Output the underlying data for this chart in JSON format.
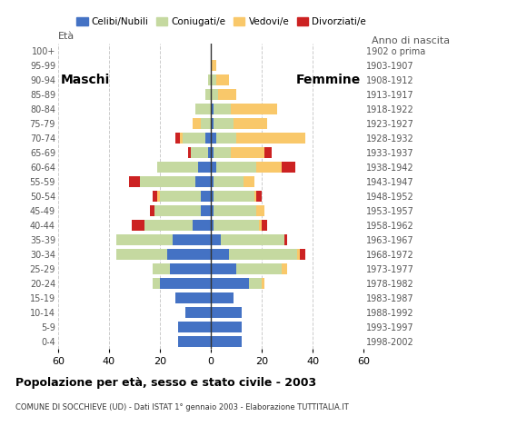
{
  "age_groups": [
    "0-4",
    "5-9",
    "10-14",
    "15-19",
    "20-24",
    "25-29",
    "30-34",
    "35-39",
    "40-44",
    "45-49",
    "50-54",
    "55-59",
    "60-64",
    "65-69",
    "70-74",
    "75-79",
    "80-84",
    "85-89",
    "90-94",
    "95-99",
    "100+"
  ],
  "birth_years": [
    "1998-2002",
    "1993-1997",
    "1988-1992",
    "1983-1987",
    "1978-1982",
    "1973-1977",
    "1968-1972",
    "1963-1967",
    "1958-1962",
    "1953-1957",
    "1948-1952",
    "1943-1947",
    "1938-1942",
    "1933-1937",
    "1928-1932",
    "1923-1927",
    "1918-1922",
    "1913-1917",
    "1908-1912",
    "1903-1907",
    "1902 o prima"
  ],
  "male": {
    "celibi": [
      13,
      13,
      10,
      14,
      20,
      16,
      17,
      15,
      7,
      4,
      4,
      6,
      5,
      1,
      2,
      0,
      0,
      0,
      0,
      0,
      0
    ],
    "coniugati": [
      0,
      0,
      0,
      0,
      3,
      7,
      20,
      22,
      19,
      18,
      16,
      22,
      16,
      7,
      9,
      4,
      6,
      2,
      1,
      0,
      0
    ],
    "vedovi": [
      0,
      0,
      0,
      0,
      0,
      0,
      0,
      0,
      0,
      0,
      1,
      0,
      0,
      0,
      1,
      3,
      0,
      0,
      0,
      0,
      0
    ],
    "divorziati": [
      0,
      0,
      0,
      0,
      0,
      0,
      0,
      0,
      5,
      2,
      2,
      4,
      0,
      1,
      2,
      0,
      0,
      0,
      0,
      0,
      0
    ]
  },
  "female": {
    "nubili": [
      12,
      12,
      12,
      9,
      15,
      10,
      7,
      4,
      1,
      1,
      1,
      1,
      2,
      1,
      2,
      1,
      1,
      0,
      0,
      0,
      0
    ],
    "coniugate": [
      0,
      0,
      0,
      0,
      5,
      18,
      27,
      25,
      18,
      17,
      16,
      12,
      16,
      7,
      8,
      8,
      7,
      3,
      2,
      0,
      0
    ],
    "vedove": [
      0,
      0,
      0,
      0,
      1,
      2,
      1,
      0,
      1,
      3,
      1,
      4,
      10,
      13,
      27,
      13,
      18,
      7,
      5,
      2,
      0
    ],
    "divorziate": [
      0,
      0,
      0,
      0,
      0,
      0,
      2,
      1,
      2,
      0,
      2,
      0,
      5,
      3,
      0,
      0,
      0,
      0,
      0,
      0,
      0
    ]
  },
  "colors": {
    "celibi": "#4472C4",
    "coniugati": "#C5D9A0",
    "vedovi": "#F9C86A",
    "divorziati": "#CC2222"
  },
  "xlim": 60,
  "title": "Popolazione per età, sesso e stato civile - 2003",
  "subtitle": "COMUNE DI SOCCHIEVE (UD) - Dati ISTAT 1° gennaio 2003 - Elaborazione TUTTITALIA.IT",
  "eta_label": "Età",
  "anno_label": "Anno di nascita",
  "maschi_label": "Maschi",
  "femmine_label": "Femmine",
  "legend_labels": [
    "Celibi/Nubili",
    "Coniugati/e",
    "Vedovi/e",
    "Divorziati/e"
  ],
  "background_color": "#ffffff"
}
